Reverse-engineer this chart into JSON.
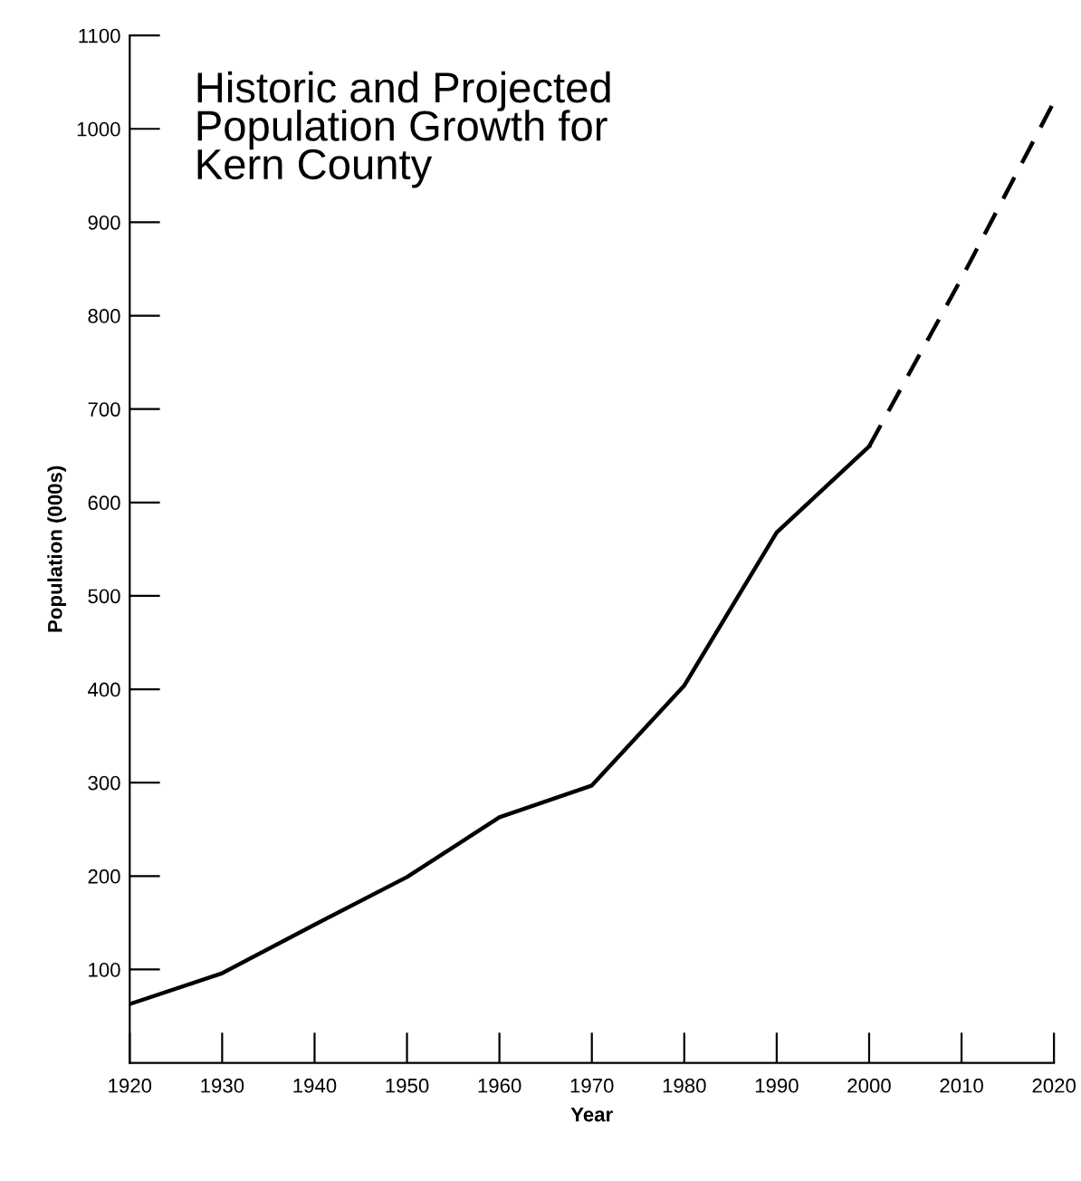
{
  "chart_data": {
    "type": "line",
    "title": "Historic and Projected\nPopulation Growth for\nKern County",
    "xlabel": "Year",
    "ylabel": "Population (000s)",
    "series": [
      {
        "x": [
          1920,
          1930,
          1940,
          1950,
          1960,
          1970,
          1980,
          1990,
          2000
        ],
        "values": [
          63,
          96,
          148,
          199,
          263,
          297,
          404,
          568,
          660
        ],
        "color": "#000000",
        "line_style": "solid"
      },
      {
        "x": [
          2000,
          2010,
          2020
        ],
        "values": [
          660,
          840,
          1029
        ],
        "color": "#000000",
        "line_style": "dashed"
      }
    ],
    "xlim": [
      1920,
      2020
    ],
    "xticks": [
      1920,
      1930,
      1940,
      1950,
      1960,
      1970,
      1980,
      1990,
      2000,
      2010,
      2020
    ],
    "ylim": [
      0,
      1100
    ],
    "yticks": [
      100,
      200,
      300,
      400,
      500,
      600,
      700,
      800,
      900,
      1000,
      1100
    ],
    "grid": false,
    "legend": false,
    "marker": "none"
  }
}
